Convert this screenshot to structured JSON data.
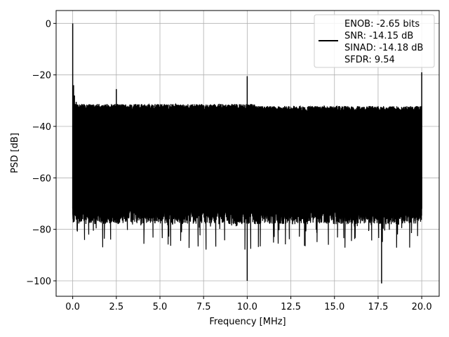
{
  "chart_data": {
    "type": "line",
    "title": "",
    "xlabel": "Frequency [MHz]",
    "ylabel": "PSD [dB]",
    "xlim": [
      -0.95,
      21.0
    ],
    "ylim": [
      -106.0,
      5.0
    ],
    "xticks": [
      0.0,
      2.5,
      5.0,
      7.5,
      10.0,
      12.5,
      15.0,
      17.5,
      20.0
    ],
    "xtick_labels": [
      "0.0",
      "2.5",
      "5.0",
      "7.5",
      "10.0",
      "12.5",
      "15.0",
      "17.5",
      "20.0"
    ],
    "yticks": [
      0,
      -20,
      -40,
      -60,
      -80,
      -100
    ],
    "ytick_labels": [
      "0",
      "−20",
      "−40",
      "−60",
      "−80",
      "−100"
    ],
    "grid": true,
    "legend_position": "top-right",
    "legend_lines": [
      "ENOB: -2.65 bits",
      "SNR: -14.15 dB",
      "SINAD: -14.18 dB",
      "SFDR: 9.54"
    ],
    "series": [
      {
        "color": "#000000",
        "noise_band": {
          "x_range": [
            0.0,
            20.0
          ],
          "top_db": -33.5,
          "bottom_db": -72.0,
          "min_db": -101.0
        },
        "points": [
          [
            0.0,
            0.0
          ],
          [
            0.05,
            -24.0
          ],
          [
            0.1,
            -28.0
          ],
          [
            0.2,
            -30.5
          ],
          [
            0.4,
            -31.5
          ],
          [
            2.5,
            -25.5
          ],
          [
            10.0,
            -20.5
          ],
          [
            10.0,
            -100.0
          ],
          [
            17.1,
            -32.5
          ],
          [
            17.7,
            -101.0
          ],
          [
            20.0,
            -19.0
          ]
        ]
      }
    ]
  }
}
